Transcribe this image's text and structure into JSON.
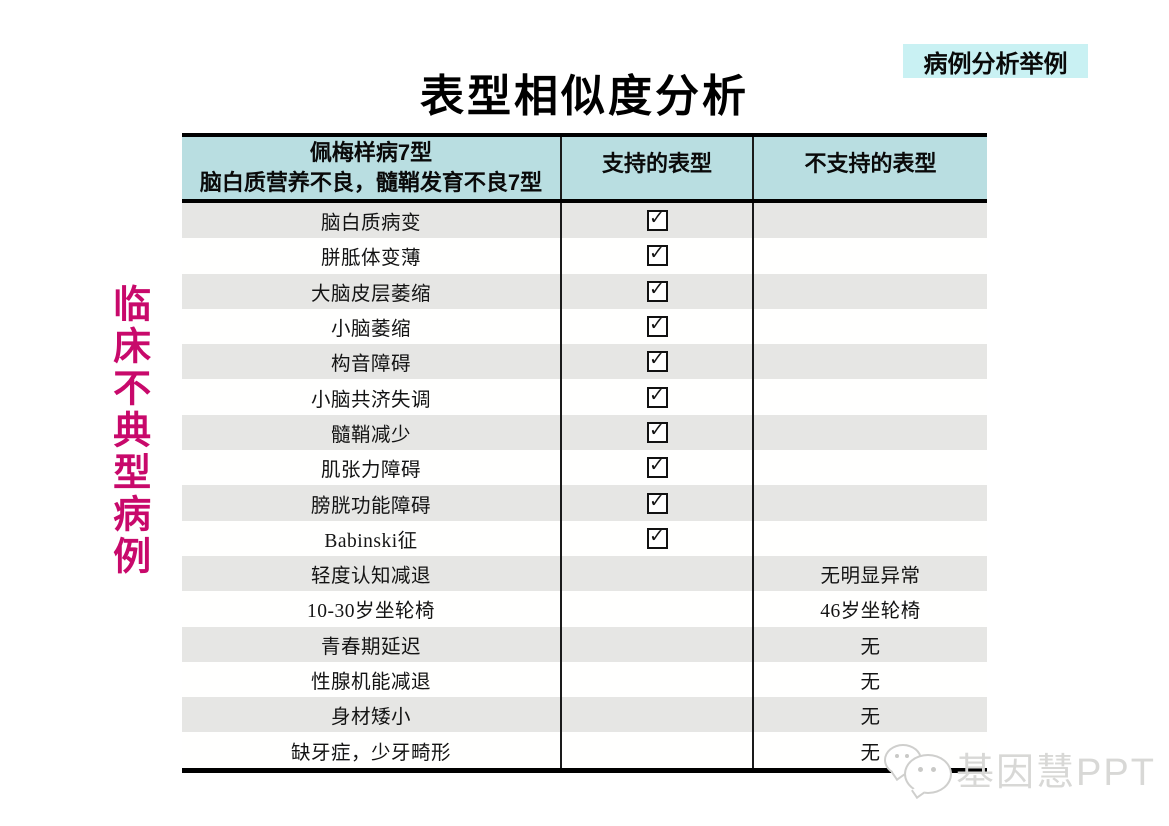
{
  "page": {
    "title": "表型相似度分析",
    "corner_badge": "病例分析举例",
    "side_label": "临床不典型病例",
    "watermark": "基因慧PPT"
  },
  "colors": {
    "header_bg": "#b9dee1",
    "badge_bg": "#c9f1f3",
    "row_alt": "#e6e6e4",
    "side_text": "#c8096b"
  },
  "table": {
    "check_glyph": "✓",
    "header": {
      "col1_line1": "佩梅样病7型",
      "col1_line2": "脑白质营养不良，髓鞘发育不良7型",
      "col2": "支持的表型",
      "col3": "不支持的表型"
    },
    "rows": [
      {
        "phenotype": "脑白质病变",
        "supported": true,
        "unsupported": ""
      },
      {
        "phenotype": "胼胝体变薄",
        "supported": true,
        "unsupported": ""
      },
      {
        "phenotype": "大脑皮层萎缩",
        "supported": true,
        "unsupported": ""
      },
      {
        "phenotype": "小脑萎缩",
        "supported": true,
        "unsupported": ""
      },
      {
        "phenotype": "构音障碍",
        "supported": true,
        "unsupported": ""
      },
      {
        "phenotype": "小脑共济失调",
        "supported": true,
        "unsupported": ""
      },
      {
        "phenotype": "髓鞘减少",
        "supported": true,
        "unsupported": ""
      },
      {
        "phenotype": "肌张力障碍",
        "supported": true,
        "unsupported": ""
      },
      {
        "phenotype": "膀胱功能障碍",
        "supported": true,
        "unsupported": ""
      },
      {
        "phenotype": "Babinski征",
        "supported": true,
        "unsupported": ""
      },
      {
        "phenotype": "轻度认知减退",
        "supported": false,
        "unsupported": "无明显异常"
      },
      {
        "phenotype": "10-30岁坐轮椅",
        "supported": false,
        "unsupported": "46岁坐轮椅"
      },
      {
        "phenotype": "青春期延迟",
        "supported": false,
        "unsupported": "无"
      },
      {
        "phenotype": "性腺机能减退",
        "supported": false,
        "unsupported": "无"
      },
      {
        "phenotype": "身材矮小",
        "supported": false,
        "unsupported": "无"
      },
      {
        "phenotype": "缺牙症，少牙畸形",
        "supported": false,
        "unsupported": "无"
      }
    ]
  }
}
